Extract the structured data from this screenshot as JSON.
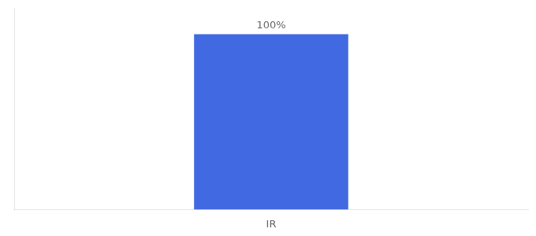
{
  "chart_data": {
    "type": "bar",
    "categories": [
      "IR"
    ],
    "values": [
      100
    ],
    "color": "#4169E1",
    "data_labels": true,
    "value_labels": [
      "100%"
    ],
    "ylim": [
      0,
      115
    ],
    "grid": false,
    "tick_labels": "x"
  }
}
